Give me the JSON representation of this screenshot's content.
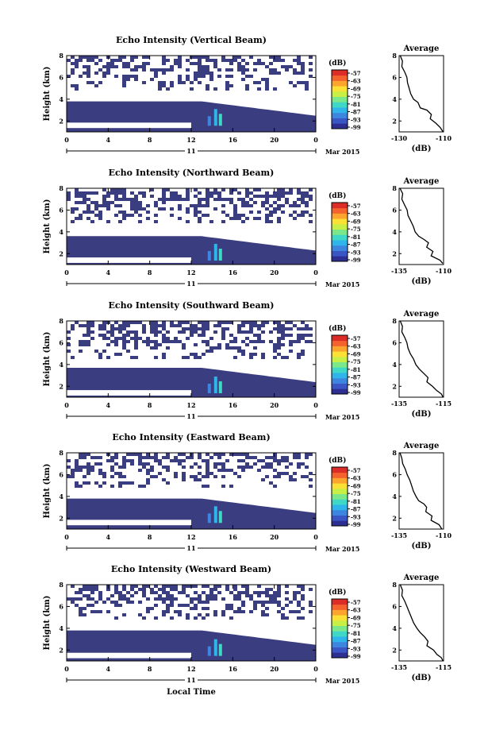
{
  "chart_data": [
    {
      "type": "heatmap",
      "title": "Echo Intensity (Vertical Beam)",
      "ylabel": "Height (km)",
      "xticks": [
        "0",
        "4",
        "8",
        "12",
        "16",
        "20",
        "0"
      ],
      "xlim": [
        0,
        24
      ],
      "yticks": [
        "2",
        "4",
        "6",
        "8"
      ],
      "ylim": [
        1,
        8
      ],
      "date_label": "11",
      "month_label": "Mar 2015",
      "colorbar": {
        "unit": "(dB)",
        "labels": [
          "-57",
          "-63",
          "-69",
          "-75",
          "-81",
          "-87",
          "-93",
          "-99"
        ]
      },
      "layers": {
        "top": 3.8,
        "bottom": 1.6,
        "upper_sparse_top": 8.0,
        "upper_sparse_bottom": 5.0
      },
      "profile": {
        "title": "Average",
        "xlabel": "(dB)",
        "xticks": [
          "-130",
          "-110"
        ],
        "xlim": [
          -130,
          -110
        ],
        "yticks": [
          "2",
          "4",
          "6",
          "8"
        ],
        "ylim": [
          1,
          8
        ],
        "points": [
          [
            -129.5,
            8.0
          ],
          [
            -128.5,
            7.5
          ],
          [
            -128.8,
            7.0
          ],
          [
            -127.5,
            6.5
          ],
          [
            -126.5,
            6.0
          ],
          [
            -126.2,
            5.5
          ],
          [
            -125.5,
            5.0
          ],
          [
            -124.8,
            4.5
          ],
          [
            -123.5,
            4.0
          ],
          [
            -121.5,
            3.7
          ],
          [
            -120.5,
            3.2
          ],
          [
            -117.5,
            3.0
          ],
          [
            -115.5,
            2.6
          ],
          [
            -116.0,
            2.2
          ],
          [
            -113.5,
            1.8
          ],
          [
            -111.5,
            1.4
          ],
          [
            -110.2,
            1.0
          ]
        ]
      }
    },
    {
      "type": "heatmap",
      "title": "Echo Intensity (Northward Beam)",
      "ylabel": "Height (km)",
      "xticks": [
        "0",
        "4",
        "8",
        "12",
        "16",
        "20",
        "0"
      ],
      "xlim": [
        0,
        24
      ],
      "yticks": [
        "2",
        "4",
        "6",
        "8"
      ],
      "ylim": [
        1,
        8
      ],
      "date_label": "11",
      "month_label": "Mar 2015",
      "colorbar": {
        "unit": "(dB)",
        "labels": [
          "-57",
          "-63",
          "-69",
          "-75",
          "-81",
          "-87",
          "-93",
          "-99"
        ]
      },
      "layers": {
        "top": 3.6,
        "bottom": 1.4,
        "upper_sparse_top": 8.0,
        "upper_sparse_bottom": 4.8
      },
      "profile": {
        "title": "Average",
        "xlabel": "(dB)",
        "xticks": [
          "-135",
          "-110"
        ],
        "xlim": [
          -135,
          -110
        ],
        "yticks": [
          "2",
          "4",
          "6",
          "8"
        ],
        "ylim": [
          1,
          8
        ],
        "points": [
          [
            -134.5,
            8.0
          ],
          [
            -133.0,
            7.5
          ],
          [
            -133.5,
            7.0
          ],
          [
            -132.0,
            6.5
          ],
          [
            -130.5,
            6.0
          ],
          [
            -130.0,
            5.5
          ],
          [
            -128.5,
            5.0
          ],
          [
            -127.0,
            4.5
          ],
          [
            -126.0,
            4.0
          ],
          [
            -124.0,
            3.6
          ],
          [
            -121.0,
            3.3
          ],
          [
            -118.5,
            3.0
          ],
          [
            -119.5,
            2.6
          ],
          [
            -116.0,
            2.2
          ],
          [
            -117.0,
            1.8
          ],
          [
            -112.0,
            1.4
          ],
          [
            -110.5,
            1.1
          ]
        ]
      }
    },
    {
      "type": "heatmap",
      "title": "Echo Intensity (Southward Beam)",
      "ylabel": "Height (km)",
      "xticks": [
        "0",
        "4",
        "8",
        "12",
        "16",
        "20",
        "0"
      ],
      "xlim": [
        0,
        24
      ],
      "yticks": [
        "2",
        "4",
        "6",
        "8"
      ],
      "ylim": [
        1,
        8
      ],
      "date_label": "11",
      "month_label": "Mar 2015",
      "colorbar": {
        "unit": "(dB)",
        "labels": [
          "-57",
          "-63",
          "-69",
          "-75",
          "-81",
          "-87",
          "-93",
          "-99"
        ]
      },
      "layers": {
        "top": 3.7,
        "bottom": 1.4,
        "upper_sparse_top": 8.0,
        "upper_sparse_bottom": 4.6
      },
      "profile": {
        "title": "Average",
        "xlabel": "(dB)",
        "xticks": [
          "-135",
          "-115"
        ],
        "xlim": [
          -135,
          -115
        ],
        "yticks": [
          "2",
          "4",
          "6",
          "8"
        ],
        "ylim": [
          1,
          8
        ],
        "points": [
          [
            -134.5,
            8.0
          ],
          [
            -133.5,
            7.5
          ],
          [
            -133.8,
            7.0
          ],
          [
            -132.5,
            6.5
          ],
          [
            -131.5,
            6.0
          ],
          [
            -131.0,
            5.5
          ],
          [
            -130.0,
            5.0
          ],
          [
            -128.5,
            4.5
          ],
          [
            -127.5,
            4.0
          ],
          [
            -126.0,
            3.6
          ],
          [
            -124.0,
            3.2
          ],
          [
            -122.0,
            2.8
          ],
          [
            -122.5,
            2.4
          ],
          [
            -120.0,
            2.0
          ],
          [
            -118.0,
            1.6
          ],
          [
            -116.0,
            1.3
          ],
          [
            -115.2,
            1.0
          ]
        ]
      }
    },
    {
      "type": "heatmap",
      "title": "Echo Intensity (Eastward Beam)",
      "ylabel": "Height (km)",
      "xticks": [
        "0",
        "4",
        "8",
        "12",
        "16",
        "20",
        "0"
      ],
      "xlim": [
        0,
        24
      ],
      "yticks": [
        "2",
        "4",
        "6",
        "8"
      ],
      "ylim": [
        1,
        8
      ],
      "date_label": "11",
      "month_label": "Mar 2015",
      "colorbar": {
        "unit": "(dB)",
        "labels": [
          "-57",
          "-63",
          "-69",
          "-75",
          "-81",
          "-87",
          "-93",
          "-99"
        ]
      },
      "layers": {
        "top": 3.8,
        "bottom": 1.6,
        "upper_sparse_top": 8.0,
        "upper_sparse_bottom": 5.0
      },
      "profile": {
        "title": "Average",
        "xlabel": "(dB)",
        "xticks": [
          "-135",
          "-110"
        ],
        "xlim": [
          -135,
          -110
        ],
        "yticks": [
          "2",
          "4",
          "6",
          "8"
        ],
        "ylim": [
          1,
          8
        ],
        "points": [
          [
            -134.5,
            8.0
          ],
          [
            -133.5,
            7.5
          ],
          [
            -133.0,
            7.0
          ],
          [
            -131.5,
            6.5
          ],
          [
            -130.5,
            6.0
          ],
          [
            -129.0,
            5.5
          ],
          [
            -128.0,
            5.0
          ],
          [
            -127.0,
            4.5
          ],
          [
            -125.5,
            4.0
          ],
          [
            -124.0,
            3.6
          ],
          [
            -121.0,
            3.3
          ],
          [
            -119.5,
            3.0
          ],
          [
            -120.0,
            2.6
          ],
          [
            -116.5,
            2.2
          ],
          [
            -117.0,
            1.8
          ],
          [
            -112.5,
            1.4
          ],
          [
            -111.0,
            1.0
          ]
        ]
      }
    },
    {
      "type": "heatmap",
      "title": "Echo Intensity (Westward Beam)",
      "ylabel": "Height (km)",
      "xticks": [
        "0",
        "4",
        "8",
        "12",
        "16",
        "20",
        "0"
      ],
      "xlim": [
        0,
        24
      ],
      "yticks": [
        "2",
        "4",
        "6",
        "8"
      ],
      "ylim": [
        1,
        8
      ],
      "date_label": "11",
      "month_label": "Mar 2015",
      "xlabel": "Local Time",
      "colorbar": {
        "unit": "(dB)",
        "labels": [
          "-57",
          "-63",
          "-69",
          "-75",
          "-81",
          "-87",
          "-93",
          "-99"
        ]
      },
      "layers": {
        "top": 3.8,
        "bottom": 1.5,
        "upper_sparse_top": 8.0,
        "upper_sparse_bottom": 5.0
      },
      "profile": {
        "title": "Average",
        "xlabel": "(dB)",
        "xticks": [
          "-135",
          "-115"
        ],
        "xlim": [
          -135,
          -115
        ],
        "yticks": [
          "2",
          "4",
          "6",
          "8"
        ],
        "ylim": [
          1,
          8
        ],
        "points": [
          [
            -134.5,
            8.0
          ],
          [
            -133.5,
            7.5
          ],
          [
            -133.8,
            7.0
          ],
          [
            -132.5,
            6.5
          ],
          [
            -131.5,
            6.0
          ],
          [
            -130.5,
            5.5
          ],
          [
            -129.5,
            5.0
          ],
          [
            -128.5,
            4.5
          ],
          [
            -127.0,
            4.0
          ],
          [
            -125.5,
            3.6
          ],
          [
            -123.5,
            3.2
          ],
          [
            -122.0,
            2.8
          ],
          [
            -122.5,
            2.4
          ],
          [
            -119.5,
            2.0
          ],
          [
            -118.0,
            1.6
          ],
          [
            -116.0,
            1.3
          ],
          [
            -115.3,
            1.0
          ]
        ]
      }
    }
  ],
  "colors": {
    "background_echo": "#3a3d80",
    "colormap": [
      "#2c2f91",
      "#3a56c4",
      "#3d86e0",
      "#2fb5e9",
      "#3fd7c5",
      "#79e78a",
      "#c7ef45",
      "#fbe035",
      "#fca52e",
      "#f4622d",
      "#dc2c27"
    ]
  }
}
